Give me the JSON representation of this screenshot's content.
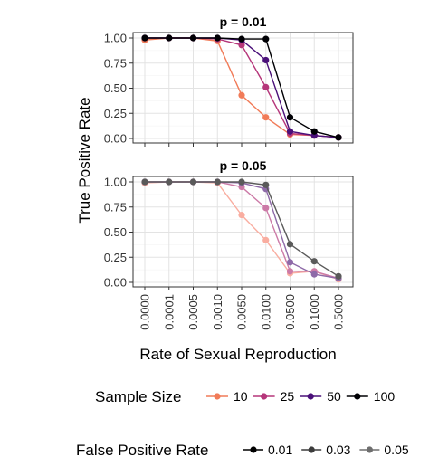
{
  "chart_data": {
    "type": "line",
    "xlabel": "Rate of Sexual Reproduction",
    "ylabel": "True Positive Rate",
    "categories": [
      "0.0000",
      "0.0001",
      "0.0005",
      "0.0010",
      "0.0050",
      "0.0100",
      "0.0500",
      "0.1000",
      "0.5000"
    ],
    "ylim": [
      0,
      1
    ],
    "yticks": [
      "0.00",
      "0.25",
      "0.50",
      "0.75",
      "1.00"
    ],
    "grid": true,
    "panels": [
      {
        "title": "p = 0.01",
        "series": [
          {
            "name": "10",
            "fpr": "0.01",
            "color": "#f17b58",
            "values": [
              0.98,
              1.0,
              1.0,
              0.97,
              0.43,
              0.21,
              0.04,
              0.03,
              0.01
            ]
          },
          {
            "name": "25",
            "fpr": "0.01",
            "color": "#b5367a",
            "values": [
              1.0,
              1.0,
              1.0,
              0.99,
              0.93,
              0.51,
              0.05,
              0.03,
              0.01
            ]
          },
          {
            "name": "50",
            "fpr": "0.01",
            "color": "#4a1079",
            "values": [
              1.0,
              1.0,
              1.0,
              1.0,
              0.98,
              0.78,
              0.07,
              0.03,
              0.01
            ]
          },
          {
            "name": "100",
            "fpr": "0.01",
            "color": "#000004",
            "values": [
              1.0,
              1.0,
              1.0,
              1.0,
              0.99,
              0.99,
              0.21,
              0.07,
              0.01
            ]
          }
        ]
      },
      {
        "title": "p = 0.05",
        "series": [
          {
            "name": "10",
            "fpr": "0.05",
            "color": "#f9ada0",
            "values": [
              0.99,
              1.0,
              1.0,
              0.99,
              0.67,
              0.42,
              0.09,
              0.11,
              0.03
            ]
          },
          {
            "name": "25",
            "fpr": "0.05",
            "color": "#cc7aa7",
            "values": [
              1.0,
              1.0,
              1.0,
              1.0,
              0.95,
              0.74,
              0.11,
              0.11,
              0.04
            ]
          },
          {
            "name": "50",
            "fpr": "0.05",
            "color": "#8e6aa8",
            "values": [
              1.0,
              1.0,
              1.0,
              1.0,
              0.99,
              0.93,
              0.2,
              0.08,
              0.04
            ]
          },
          {
            "name": "100",
            "fpr": "0.05",
            "color": "#5a5a5a",
            "values": [
              1.0,
              1.0,
              1.0,
              1.0,
              1.0,
              0.97,
              0.38,
              0.21,
              0.06
            ]
          }
        ]
      }
    ],
    "legends": [
      {
        "title": "Sample Size",
        "entries": [
          {
            "label": "10",
            "color": "#f17b58"
          },
          {
            "label": "25",
            "color": "#b5367a"
          },
          {
            "label": "50",
            "color": "#4a1079"
          },
          {
            "label": "100",
            "color": "#000004"
          }
        ]
      },
      {
        "title": "False Positive Rate",
        "entries": [
          {
            "label": "0.01",
            "color": "#000000"
          },
          {
            "label": "0.03",
            "color": "#3c3c3c"
          },
          {
            "label": "0.05",
            "color": "#6e6e6e"
          }
        ]
      }
    ]
  }
}
